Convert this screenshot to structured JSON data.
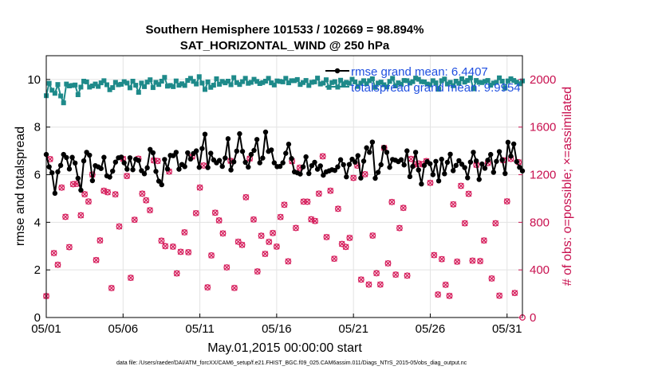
{
  "chart_data": {
    "type": "line",
    "title": "Southern Hemisphere 101533 / 102669 = 98.894%",
    "subtitle": "SAT_HORIZONTAL_WIND @ 250 hPa",
    "xlabel": "May.01,2015 00:00:00 start",
    "ylabel": "rmse and totalspread",
    "ylabel_right": "# of obs: o=possible; ×=assimilated",
    "footnote": "data file: /Users/raeder/DAI/ATM_forcXX/CAM6_setup/f.e21.FHIST_BGC.f09_025.CAM6assim.011/Diags_NTrS_2015-05/obs_diag_output.nc",
    "x_ticks": [
      "05/01",
      "05/06",
      "05/11",
      "05/16",
      "05/21",
      "05/26",
      "05/31"
    ],
    "y_ticks": [
      "0",
      "2",
      "4",
      "6",
      "8",
      "10"
    ],
    "y2_ticks": [
      "0",
      "400",
      "800",
      "1200",
      "1600",
      "2000"
    ],
    "ylim": [
      0,
      11
    ],
    "y2lim": [
      0,
      2200
    ],
    "xlim": [
      1,
      32
    ],
    "grid": true,
    "legend_position": "top-right",
    "colors": {
      "rmse": "#000000",
      "totalspread": "#1e8a8a",
      "obs": "#d61f5d",
      "right_axis": "#c8104f",
      "legend_text": "#1f4fe0"
    },
    "series": [
      {
        "name": "rmse grand mean: 6.4407",
        "axis": "left",
        "values": [
          6.85,
          6.33,
          6.08,
          5.22,
          6.12,
          6.39,
          6.85,
          6.72,
          6.24,
          6.73,
          6.49,
          5.85,
          5.35,
          6.58,
          6.94,
          6.82,
          5.75,
          6.38,
          6.33,
          6.26,
          6.73,
          5.95,
          5.9,
          6.15,
          6.53,
          6.71,
          6.74,
          6.5,
          6.23,
          6.71,
          6.21,
          6.65,
          6.6,
          6.17,
          6.04,
          6.29,
          7.06,
          6.92,
          6.14,
          5.73,
          5.58,
          6.64,
          6.24,
          6.81,
          6.8,
          6.94,
          6.23,
          6.43,
          6.34,
          6.92,
          6.66,
          6.89,
          7.0,
          6.31,
          7.1,
          7.7,
          6.3,
          6.9,
          6.62,
          6.5,
          6.6,
          6.35,
          6.7,
          7.51,
          6.2,
          6.54,
          6.99,
          7.72,
          6.98,
          6.52,
          6.32,
          6.85,
          7.02,
          7.48,
          6.5,
          6.7,
          7.79,
          6.98,
          7.04,
          6.5,
          6.34,
          6.35,
          6.5,
          6.9,
          7.28,
          6.68,
          6.12,
          6.08,
          6.03,
          6.33,
          6.75,
          6.05,
          6.38,
          6.52,
          6.23,
          6.37,
          5.98,
          6.12,
          6.16,
          6.21,
          6.18,
          6.33,
          6.63,
          6.42,
          5.91,
          6.43,
          6.65,
          6.53,
          6.8,
          5.86,
          6.57,
          7.13,
          6.94,
          7.37,
          5.85,
          6.1,
          6.42,
          7.15,
          6.94,
          6.31,
          6.64,
          6.61,
          6.55,
          6.63,
          6.41,
          7.0,
          5.92,
          6.35,
          6.94,
          6.2,
          5.61,
          6.39,
          6.55,
          6.46,
          6.0,
          6.56,
          5.74,
          6.65,
          6.04,
          6.52,
          6.86,
          6.17,
          6.39,
          6.59,
          6.44,
          6.3,
          5.87,
          6.53,
          6.94,
          6.58,
          5.8,
          6.45,
          6.27,
          6.61,
          6.85,
          6.1,
          6.56,
          6.97,
          6.62,
          6.05,
          7.36,
          6.78,
          7.29,
          6.55,
          6.31,
          6.16
        ]
      },
      {
        "name": "totalspread grand mean: 9.9954",
        "axis": "left",
        "values": [
          9.32,
          9.84,
          9.55,
          9.42,
          9.79,
          9.31,
          9.02,
          9.81,
          9.73,
          9.75,
          9.77,
          9.36,
          9.68,
          9.93,
          9.9,
          9.68,
          9.73,
          9.81,
          9.71,
          9.86,
          9.95,
          9.78,
          9.57,
          9.66,
          9.88,
          9.78,
          9.8,
          9.91,
          9.85,
          9.65,
          9.93,
          9.76,
          9.46,
          9.85,
          9.7,
          9.89,
          9.99,
          9.66,
          9.88,
          9.79,
          9.93,
          10.09,
          9.72,
          9.75,
          9.7,
          9.94,
          9.76,
          9.82,
          9.75,
          9.96,
          10.05,
          9.92,
          9.81,
          10.12,
          9.85,
          9.58,
          9.9,
          9.67,
          9.76,
          10.03,
          9.8,
          9.92,
          9.86,
          9.93,
          9.78,
          10.08,
          9.87,
          9.79,
          9.91,
          10.05,
          9.84,
          9.88,
          10.01,
          9.92,
          9.83,
          9.87,
          9.93,
          10.05,
          9.86,
          9.77,
          9.94,
          9.92,
          9.9,
          10.05,
          9.86,
          9.95,
          9.95,
          10.0,
          9.79,
          9.87,
          9.96,
          9.75,
          9.88,
          9.9,
          10.06,
          9.81,
          9.85,
          9.99,
          9.67,
          9.87,
          9.91,
          9.68,
          9.97,
          9.82,
          9.88,
          9.84,
          10.01,
          9.9,
          9.71,
          9.85,
          9.95,
          9.82,
          9.95,
          10.03,
          9.67,
          9.85,
          9.89,
          9.78,
          9.69,
          9.92,
          10.05,
          9.73,
          9.86,
          9.8,
          9.96,
          9.95,
          9.85,
          9.91,
          10.06,
          10.01,
          9.91,
          9.9,
          9.81,
          9.78,
          9.95,
          9.86,
          9.59,
          9.95,
          10.02,
          9.81,
          9.88,
          9.74,
          9.93,
          9.84,
          10.03,
          9.89,
          9.96,
          10.07,
          9.61,
          9.96,
          9.88,
          9.87,
          9.92,
          9.96,
          9.76,
          9.85,
          9.88,
          10.07,
          9.93,
          9.64,
          9.94,
          10.03,
          9.96,
          9.89,
          9.82,
          9.94
        ]
      }
    ]
  }
}
